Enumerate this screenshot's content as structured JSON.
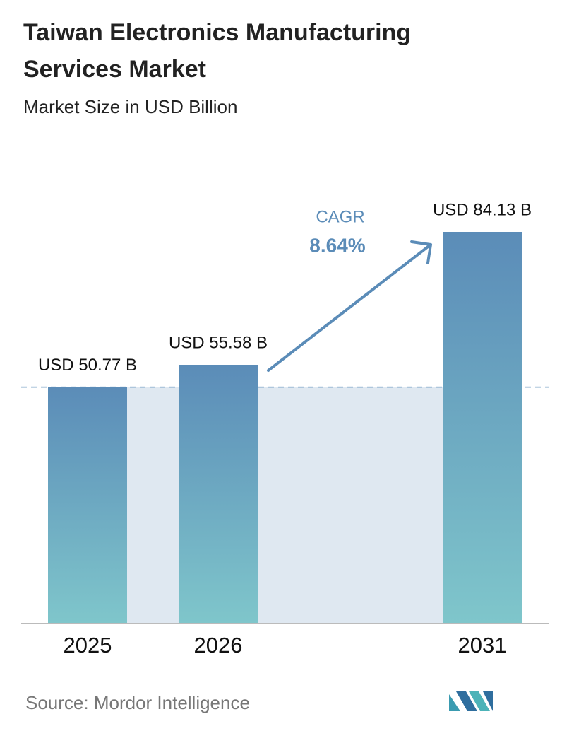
{
  "chart_data": {
    "type": "bar",
    "title": "Taiwan Electronics Manufacturing Services Market",
    "subtitle": "Market Size in USD Billion",
    "categories": [
      "2025",
      "2026",
      "2031"
    ],
    "values": [
      50.77,
      55.58,
      84.13
    ],
    "value_labels": [
      "USD 50.77 B",
      "USD 55.58 B",
      "USD 84.13 B"
    ],
    "colors": [
      "#5b8cb8",
      "#7fc6cb"
    ],
    "annotation": {
      "label": "CAGR",
      "value": "8.64%"
    },
    "source": "Source:  Mordor Intelligence"
  }
}
